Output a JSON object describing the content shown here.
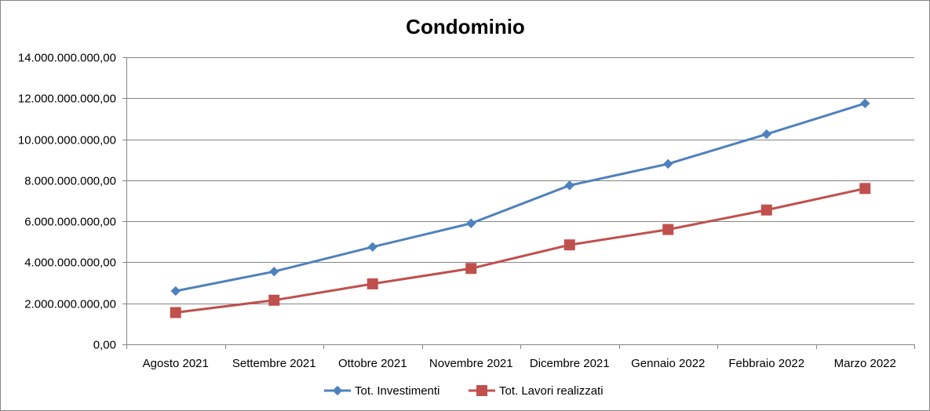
{
  "chart_data": {
    "type": "line",
    "title": "Condominio",
    "xlabel": "",
    "ylabel": "",
    "categories": [
      "Agosto 2021",
      "Settembre 2021",
      "Ottobre 2021",
      "Novembre 2021",
      "Dicembre 2021",
      "Gennaio 2022",
      "Febbraio 2022",
      "Marzo 2022"
    ],
    "ylim": [
      0,
      14000000000
    ],
    "yticks": [
      0,
      2000000000,
      4000000000,
      6000000000,
      8000000000,
      10000000000,
      12000000000,
      14000000000
    ],
    "ytick_labels": [
      "0,00",
      "2.000.000.000,00",
      "4.000.000.000,00",
      "6.000.000.000,00",
      "8.000.000.000,00",
      "10.000.000.000,00",
      "12.000.000.000,00",
      "14.000.000.000,00"
    ],
    "grid": true,
    "legend": "bottom",
    "series": [
      {
        "name": "Tot. Investimenti",
        "color": "#4F81BD",
        "marker": "diamond",
        "values": [
          2600000000,
          3550000000,
          4750000000,
          5900000000,
          7750000000,
          8800000000,
          10250000000,
          11750000000
        ]
      },
      {
        "name": "Tot. Lavori realizzati",
        "color": "#C0504D",
        "marker": "square",
        "values": [
          1550000000,
          2150000000,
          2950000000,
          3700000000,
          4850000000,
          5600000000,
          6550000000,
          7600000000
        ]
      }
    ]
  }
}
